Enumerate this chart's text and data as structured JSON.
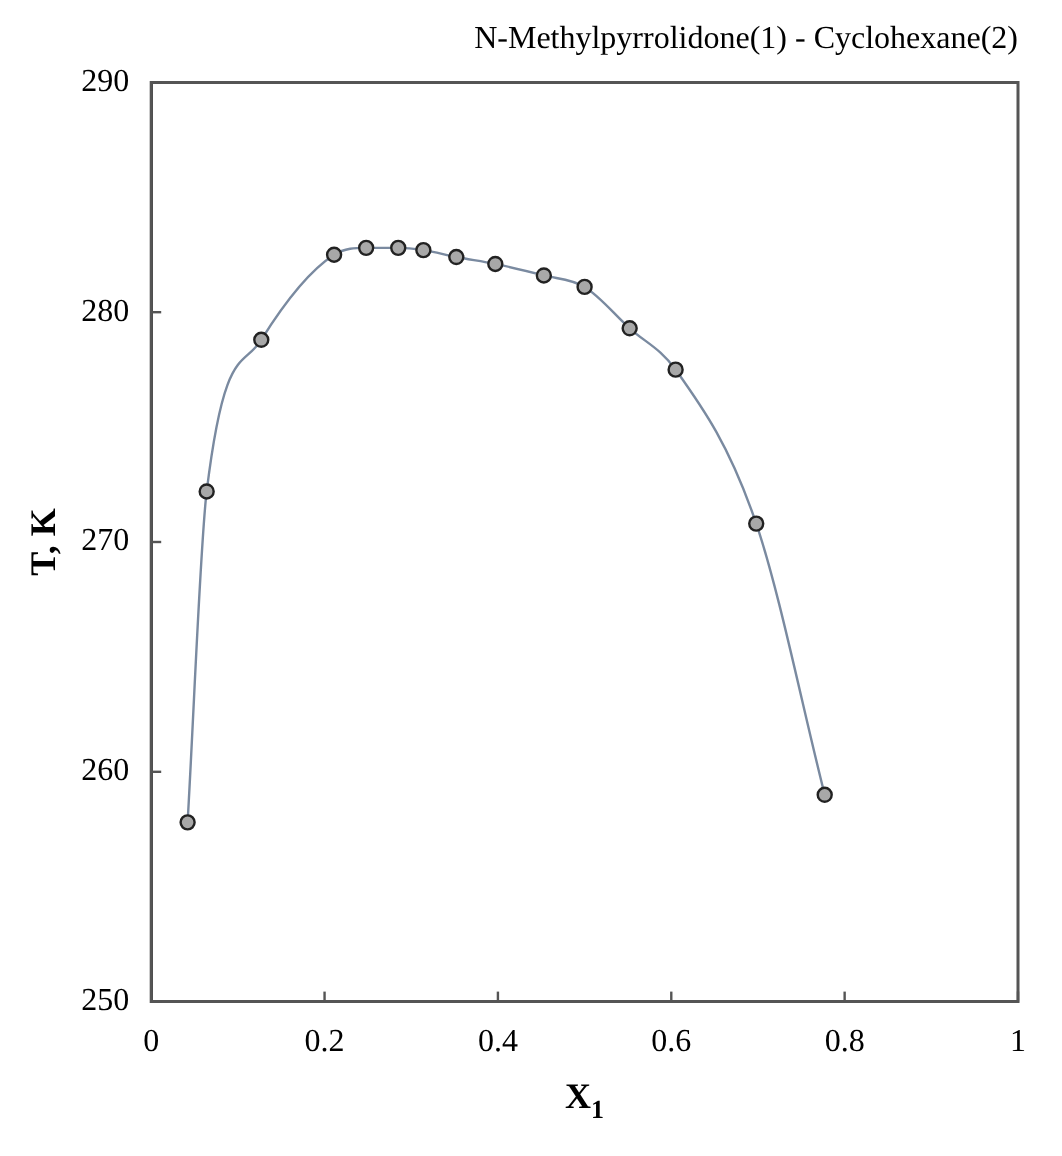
{
  "chart_data": {
    "type": "line",
    "title": "N-Methylpyrrolidone(1) - Cyclohexane(2)",
    "xlabel": "X$_{1}$",
    "ylabel": "T, K",
    "x": [
      0.042,
      0.064,
      0.127,
      0.211,
      0.248,
      0.285,
      0.314,
      0.352,
      0.397,
      0.453,
      0.5,
      0.552,
      0.605,
      0.698,
      0.777
    ],
    "series": [
      {
        "color": "#7a8aa0",
        "values": [
          257.8,
          272.2,
          278.8,
          282.5,
          282.8,
          282.8,
          282.7,
          282.4,
          282.1,
          281.6,
          281.1,
          279.3,
          277.5,
          270.8,
          259.0
        ]
      }
    ],
    "xlim": [
      0,
      1
    ],
    "xticks": [
      0,
      0.2,
      0.4,
      0.6,
      0.8,
      1
    ],
    "ylim": [
      250,
      290
    ],
    "yticks": [
      250,
      260,
      270,
      280,
      290
    ],
    "grid": false,
    "legend": false,
    "marker": "circle",
    "line_style": "solid"
  }
}
